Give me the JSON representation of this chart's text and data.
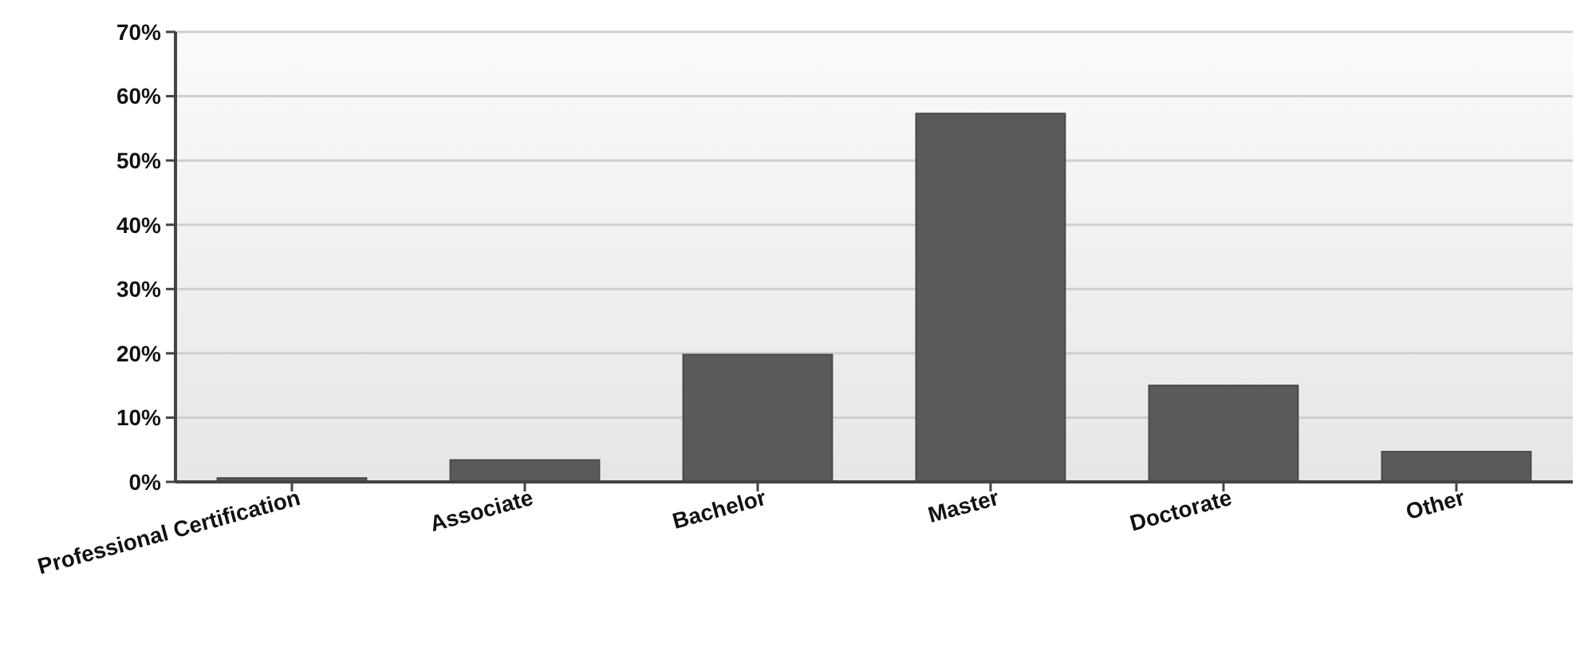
{
  "chart_data": {
    "type": "bar",
    "categories": [
      "Professional Certification",
      "Associate",
      "Bachelor",
      "Master",
      "Doctorate",
      "Other"
    ],
    "values": [
      0.6,
      3.4,
      19.8,
      57.3,
      15.0,
      4.7
    ],
    "color": "#5a5a5a",
    "ylim": [
      0,
      70
    ],
    "yticks": [
      {
        "value": 0,
        "label": "0%"
      },
      {
        "value": 10,
        "label": "10%"
      },
      {
        "value": 20,
        "label": "20%"
      },
      {
        "value": 30,
        "label": "30%"
      },
      {
        "value": 40,
        "label": "40%"
      },
      {
        "value": 50,
        "label": "50%"
      },
      {
        "value": 60,
        "label": "60%"
      },
      {
        "value": 70,
        "label": "70%"
      }
    ],
    "grid": "y"
  }
}
